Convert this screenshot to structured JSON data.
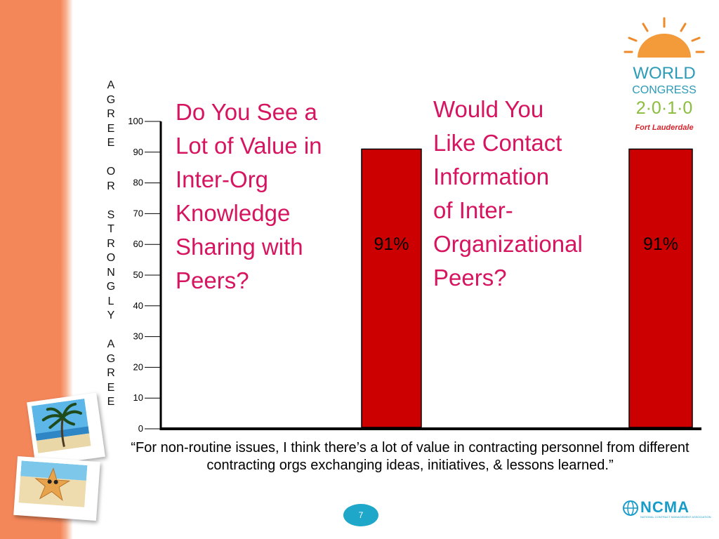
{
  "slide": {
    "question_left": "Do You See a\nLot of Value in\nInter-Org\nKnowledge\nSharing with\nPeers?",
    "question_right": "Would You\nLike Contact\nInformation\nof Inter-\nOrganizational\nPeers?",
    "y_axis_label_vertical": "A\nG\nR\nE\nE\n\nO\nR\n\nS\nT\nR\nO\nN\nG\nL\nY\n\nA\nG\nR\nE\nE",
    "quote": "“For non-routine issues, I think there’s a lot of value in contracting personnel from different contracting orgs exchanging ideas, initiatives, & lessons learned.”",
    "page_number": "7"
  },
  "logos": {
    "world_congress_line1": "WORLD",
    "world_congress_line2": "CONGRESS",
    "world_congress_year": "2·0·1·0",
    "world_congress_city": "Fort Lauderdale",
    "ncma": "NCMA",
    "ncma_sub": "NATIONAL CONTRACT MANAGEMENT ASSOCIATION"
  },
  "colors": {
    "background_strip": "#f4875a",
    "bar_fill": "#cc0000",
    "question_text": "#d6145f",
    "page_badge": "#1ea7c9",
    "ncma_blue": "#1a9cc9"
  },
  "chart_data": {
    "type": "bar",
    "categories": [
      "",
      ""
    ],
    "values": [
      91,
      91
    ],
    "data_labels": [
      "91%",
      "91%"
    ],
    "ylim": [
      0,
      100
    ],
    "y_ticks": [
      0,
      10,
      20,
      30,
      40,
      50,
      60,
      70,
      80,
      90,
      100
    ],
    "ylabel": "AGREE OR STRONGLY AGREE",
    "xlabel": "",
    "title": "",
    "grid": false,
    "legend": "none"
  }
}
